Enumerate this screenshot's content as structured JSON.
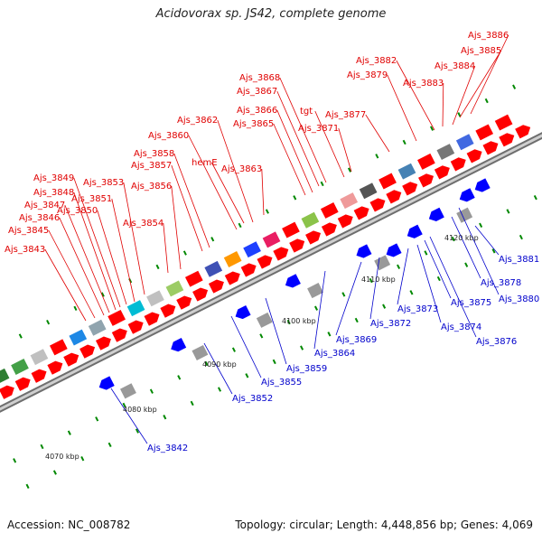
{
  "title": "Acidovorax sp. JS42, complete genome",
  "footer": {
    "accession": "Accession: NC_008782",
    "topology": "Topology: circular; Length: 4,448,856 bp; Genes: 4,069"
  },
  "colors": {
    "forward": "#ff0000",
    "reverse": "#0000ff",
    "label_forward": "#e00000",
    "label_reverse": "#0000cc",
    "backbone": "#999999",
    "tick": "#008800"
  },
  "scale": [
    {
      "label": "4070 kbp"
    },
    {
      "label": "4080 kbp"
    },
    {
      "label": "4090 kbp"
    },
    {
      "label": "4100 kbp"
    },
    {
      "label": "4110 kbp"
    },
    {
      "label": "4120 kbp"
    }
  ],
  "forward_genes": [
    "Ajs_3843",
    "Ajs_3845",
    "Ajs_3846",
    "Ajs_3847",
    "Ajs_3848",
    "Ajs_3849",
    "Ajs_3850",
    "Ajs_3851",
    "Ajs_3853",
    "Ajs_3854",
    "Ajs_3856",
    "Ajs_3857",
    "Ajs_3858",
    "Ajs_3860",
    "hemE",
    "Ajs_3862",
    "Ajs_3863",
    "Ajs_3865",
    "Ajs_3866",
    "Ajs_3867",
    "Ajs_3868",
    "tgt",
    "Ajs_3871",
    "Ajs_3877",
    "Ajs_3879",
    "Ajs_3882",
    "Ajs_3883",
    "Ajs_3884",
    "Ajs_3885",
    "Ajs_3886"
  ],
  "reverse_genes": [
    "Ajs_3842",
    "Ajs_3852",
    "Ajs_3855",
    "Ajs_3859",
    "Ajs_3864",
    "Ajs_3869",
    "Ajs_3872",
    "Ajs_3873",
    "Ajs_3874",
    "Ajs_3875",
    "Ajs_3876",
    "Ajs_3878",
    "Ajs_3880",
    "Ajs_3881"
  ]
}
